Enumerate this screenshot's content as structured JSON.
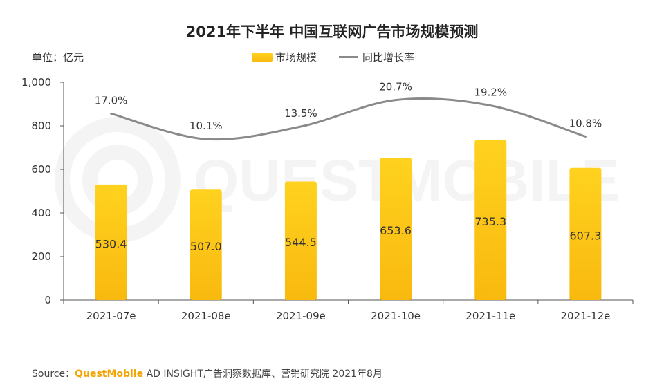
{
  "chart_data": {
    "type": "bar",
    "title": "2021年下半年 中国互联网广告市场规模预测",
    "unit_label": "单位：亿元",
    "categories": [
      "2021-07e",
      "2021-08e",
      "2021-09e",
      "2021-10e",
      "2021-11e",
      "2021-12e"
    ],
    "series": [
      {
        "name": "市场规模",
        "type": "bar",
        "values": [
          530.4,
          507.0,
          544.5,
          653.6,
          735.3,
          607.3
        ],
        "labels": [
          "530.4",
          "507.0",
          "544.5",
          "653.6",
          "735.3",
          "607.3"
        ],
        "color": "#f9b90f"
      },
      {
        "name": "同比增长率",
        "type": "line",
        "values": [
          17.0,
          10.1,
          13.5,
          20.7,
          19.2,
          10.8
        ],
        "labels": [
          "17.0%",
          "10.1%",
          "13.5%",
          "20.7%",
          "19.2%",
          "10.8%"
        ],
        "color": "#8a8a8a"
      }
    ],
    "yticks": [
      "0",
      "200",
      "400",
      "600",
      "800",
      "1,000"
    ],
    "ylim": [
      0,
      1000
    ],
    "grid": false,
    "legend_position": "top-center"
  },
  "source": {
    "prefix": "Source：",
    "brand": "QuestMobile",
    "rest": " AD INSIGHT广告洞察数据库、营销研究院 2021年8月"
  },
  "watermark_text": "QUESTMOBILE",
  "colors": {
    "bar_top": "#ffd21f",
    "bar_bottom": "#f9b90f",
    "line": "#8a8a8a",
    "brand": "#f5a300"
  }
}
